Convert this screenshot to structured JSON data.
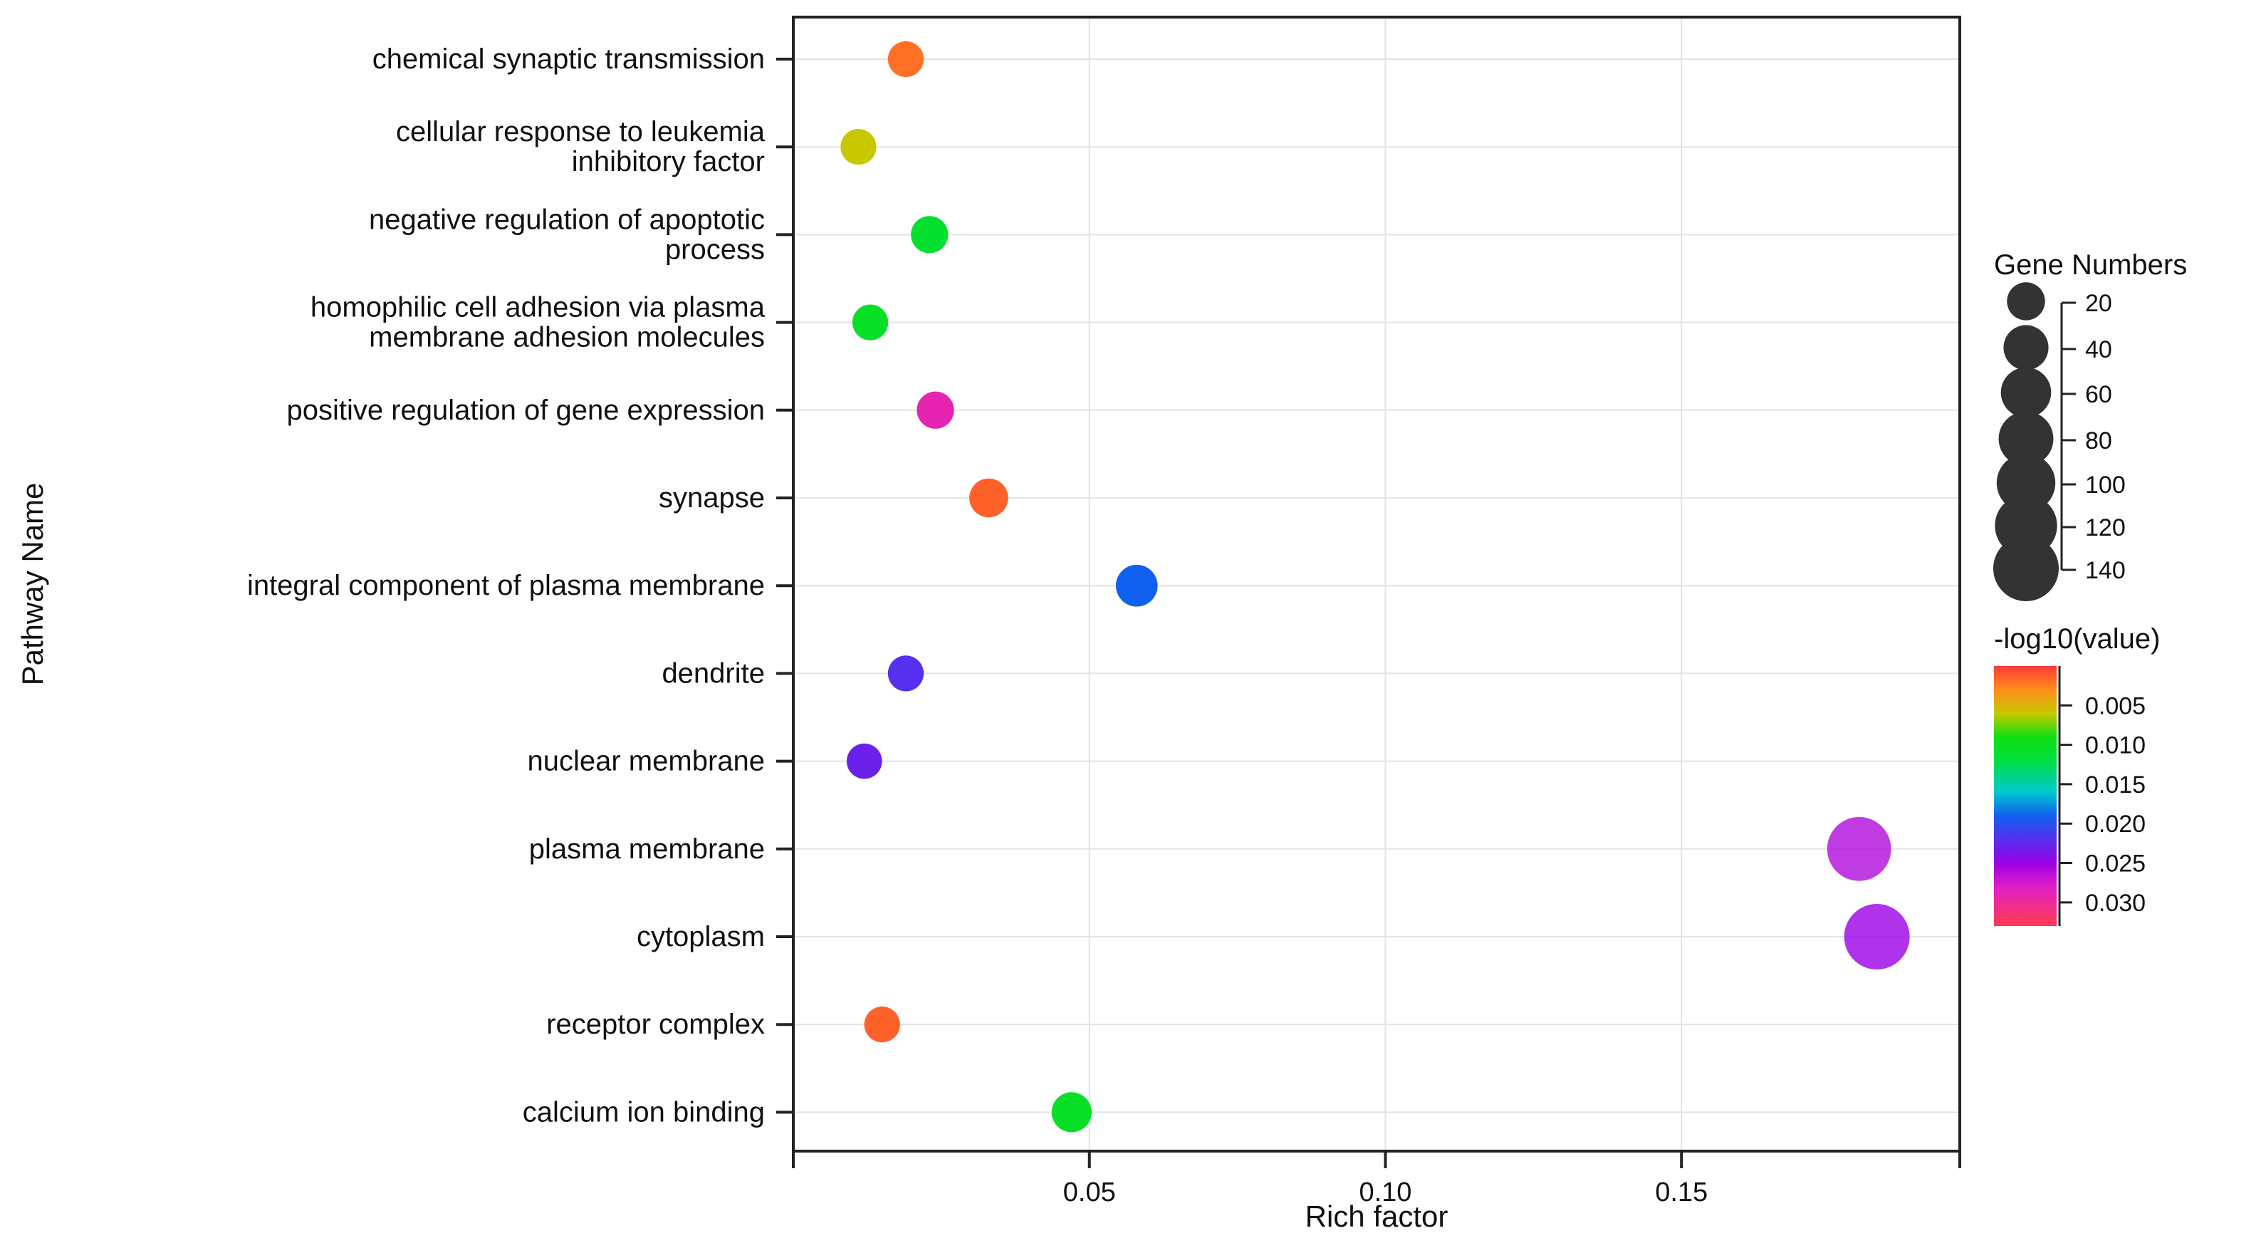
{
  "chart_data": {
    "type": "scatter",
    "subtype": "bubble",
    "xlabel": "Rich factor",
    "ylabel": "Pathway Name",
    "xlim": [
      0.0,
      0.197
    ],
    "xticks": [
      0.05,
      0.1,
      0.15
    ],
    "xtick_labels": [
      "0.05",
      "0.10",
      "0.15"
    ],
    "grid": true,
    "categories": [
      [
        "chemical synaptic transmission"
      ],
      [
        "cellular response to leukemia",
        "inhibitory factor"
      ],
      [
        "negative regulation of apoptotic",
        "process"
      ],
      [
        "homophilic cell adhesion via plasma",
        "membrane adhesion molecules"
      ],
      [
        "positive regulation of gene expression"
      ],
      [
        "synapse"
      ],
      [
        "integral component of plasma membrane"
      ],
      [
        "dendrite"
      ],
      [
        "nuclear membrane"
      ],
      [
        "plasma membrane"
      ],
      [
        "cytoplasm"
      ],
      [
        "receptor complex"
      ],
      [
        "calcium ion binding"
      ]
    ],
    "points": [
      {
        "rich_factor": 0.019,
        "gene_number": 15,
        "pvalue": 0.002
      },
      {
        "rich_factor": 0.011,
        "gene_number": 15,
        "pvalue": 0.006
      },
      {
        "rich_factor": 0.023,
        "gene_number": 18,
        "pvalue": 0.011
      },
      {
        "rich_factor": 0.013,
        "gene_number": 15,
        "pvalue": 0.0105
      },
      {
        "rich_factor": 0.024,
        "gene_number": 18,
        "pvalue": 0.029
      },
      {
        "rich_factor": 0.033,
        "gene_number": 22,
        "pvalue": 0.0015
      },
      {
        "rich_factor": 0.058,
        "gene_number": 30,
        "pvalue": 0.019
      },
      {
        "rich_factor": 0.019,
        "gene_number": 15,
        "pvalue": 0.022
      },
      {
        "rich_factor": 0.012,
        "gene_number": 14,
        "pvalue": 0.023
      },
      {
        "rich_factor": 0.18,
        "gene_number": 130,
        "pvalue": 0.026
      },
      {
        "rich_factor": 0.183,
        "gene_number": 140,
        "pvalue": 0.025
      },
      {
        "rich_factor": 0.015,
        "gene_number": 15,
        "pvalue": 0.0015
      },
      {
        "rich_factor": 0.047,
        "gene_number": 25,
        "pvalue": 0.0105
      }
    ],
    "size_legend": {
      "title": "Gene Numbers",
      "values": [
        20,
        40,
        60,
        80,
        100,
        120,
        140
      ],
      "labels": [
        "20",
        "40",
        "60",
        "80",
        "100",
        "120",
        "140"
      ],
      "color": "#333333"
    },
    "color_legend": {
      "title": "-log10(value)",
      "range": [
        0.0,
        0.033
      ],
      "ticks": [
        0.005,
        0.01,
        0.015,
        0.02,
        0.025,
        0.03
      ],
      "tick_labels": [
        "0.005",
        "0.010",
        "0.015",
        "0.020",
        "0.025",
        "0.030"
      ],
      "stops": [
        {
          "v": 0.0,
          "color": "#ff3838"
        },
        {
          "v": 0.003,
          "color": "#ff8c1a"
        },
        {
          "v": 0.006,
          "color": "#c8c800"
        },
        {
          "v": 0.009,
          "color": "#10e010"
        },
        {
          "v": 0.012,
          "color": "#00e040"
        },
        {
          "v": 0.016,
          "color": "#00c8d0"
        },
        {
          "v": 0.019,
          "color": "#1060f0"
        },
        {
          "v": 0.022,
          "color": "#5530f0"
        },
        {
          "v": 0.025,
          "color": "#9a00e6"
        },
        {
          "v": 0.028,
          "color": "#e01ec8"
        },
        {
          "v": 0.033,
          "color": "#ff3a50"
        }
      ]
    }
  }
}
